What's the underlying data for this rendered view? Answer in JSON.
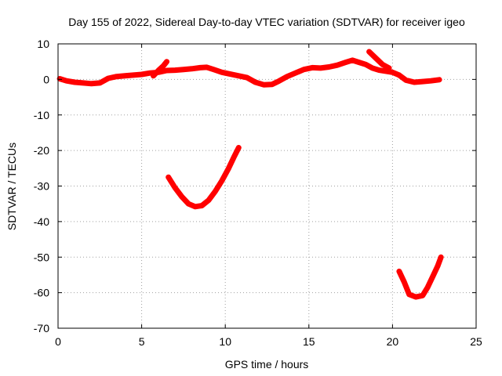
{
  "chart_data": {
    "type": "scatter",
    "title": "Day 155 of 2022, Sidereal Day-to-day VTEC variation (SDTVAR) for receiver igeo",
    "xlabel": "GPS time / hours",
    "ylabel": "SDTVAR / TECUs",
    "xlim": [
      0,
      25
    ],
    "ylim": [
      -70,
      10
    ],
    "xticks": [
      0,
      5,
      10,
      15,
      20,
      25
    ],
    "yticks": [
      10,
      0,
      -10,
      -20,
      -30,
      -40,
      -50,
      -60,
      -70
    ],
    "xtick_labels": [
      "0",
      "5",
      "10",
      "15",
      "20",
      "25"
    ],
    "ytick_labels": [
      "10",
      "0",
      "-10",
      "-20",
      "-30",
      "-40",
      "-50",
      "-60",
      "-70"
    ],
    "grid": true,
    "series_color": "#ff0000",
    "series": [
      {
        "name": "main band",
        "points": [
          [
            0.1,
            0.2
          ],
          [
            0.5,
            -0.4
          ],
          [
            1.0,
            -0.8
          ],
          [
            1.5,
            -1.0
          ],
          [
            2.0,
            -1.2
          ],
          [
            2.5,
            -1.0
          ],
          [
            3.0,
            0.3
          ],
          [
            3.5,
            0.8
          ],
          [
            4.0,
            1.0
          ],
          [
            4.5,
            1.2
          ],
          [
            5.0,
            1.4
          ],
          [
            5.5,
            1.8
          ],
          [
            6.0,
            2.0
          ],
          [
            6.5,
            2.5
          ],
          [
            7.0,
            2.6
          ],
          [
            7.5,
            2.8
          ],
          [
            8.0,
            3.0
          ],
          [
            8.5,
            3.3
          ],
          [
            8.9,
            3.4
          ],
          [
            9.3,
            2.8
          ],
          [
            9.8,
            2.0
          ],
          [
            10.3,
            1.5
          ],
          [
            10.8,
            1.0
          ],
          [
            11.3,
            0.5
          ],
          [
            11.8,
            -0.8
          ],
          [
            12.3,
            -1.5
          ],
          [
            12.8,
            -1.4
          ],
          [
            13.2,
            -0.5
          ],
          [
            13.7,
            0.8
          ],
          [
            14.2,
            1.8
          ],
          [
            14.7,
            2.8
          ],
          [
            15.2,
            3.3
          ],
          [
            15.7,
            3.2
          ],
          [
            16.2,
            3.5
          ],
          [
            16.7,
            4.0
          ],
          [
            17.2,
            4.8
          ],
          [
            17.6,
            5.4
          ],
          [
            18.0,
            4.8
          ],
          [
            18.4,
            4.2
          ],
          [
            18.8,
            3.2
          ],
          [
            19.2,
            2.6
          ],
          [
            19.6,
            2.3
          ],
          [
            20.0,
            2.0
          ],
          [
            20.4,
            1.2
          ],
          [
            20.8,
            -0.2
          ],
          [
            21.3,
            -0.8
          ],
          [
            21.8,
            -0.6
          ],
          [
            22.3,
            -0.4
          ],
          [
            22.8,
            -0.1
          ]
        ]
      },
      {
        "name": "spike 6h",
        "points": [
          [
            5.7,
            1.0
          ],
          [
            6.0,
            2.5
          ],
          [
            6.3,
            3.8
          ],
          [
            6.5,
            5.0
          ]
        ]
      },
      {
        "name": "spike 19h",
        "points": [
          [
            18.6,
            7.8
          ],
          [
            19.0,
            6.0
          ],
          [
            19.4,
            4.2
          ],
          [
            19.8,
            3.2
          ]
        ]
      },
      {
        "name": "arc 8h",
        "points": [
          [
            6.6,
            -27.5
          ],
          [
            7.0,
            -30.5
          ],
          [
            7.4,
            -33.0
          ],
          [
            7.8,
            -35.0
          ],
          [
            8.2,
            -35.8
          ],
          [
            8.6,
            -35.5
          ],
          [
            9.0,
            -34.0
          ],
          [
            9.4,
            -31.5
          ],
          [
            9.8,
            -28.5
          ],
          [
            10.2,
            -25.0
          ],
          [
            10.5,
            -22.0
          ],
          [
            10.8,
            -19.2
          ]
        ]
      },
      {
        "name": "arc 21h",
        "points": [
          [
            20.4,
            -54.0
          ],
          [
            20.7,
            -57.0
          ],
          [
            21.0,
            -60.5
          ],
          [
            21.4,
            -61.2
          ],
          [
            21.8,
            -60.8
          ],
          [
            22.1,
            -58.5
          ],
          [
            22.4,
            -55.5
          ],
          [
            22.7,
            -52.5
          ],
          [
            22.9,
            -50.0
          ]
        ]
      }
    ]
  }
}
